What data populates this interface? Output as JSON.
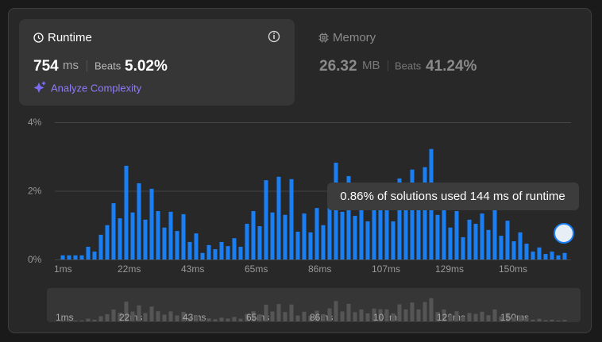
{
  "runtime": {
    "label": "Runtime",
    "value": "754",
    "unit": "ms",
    "beats_label": "Beats",
    "beats": "5.02%",
    "action": "Analyze Complexity"
  },
  "memory": {
    "label": "Memory",
    "value": "26.32",
    "unit": "MB",
    "beats_label": "Beats",
    "beats": "41.24%"
  },
  "chart_data": {
    "type": "bar",
    "color": "#1a7ef5",
    "minimap_color": "#555555",
    "categories": [
      "1ms",
      null,
      null,
      null,
      null,
      null,
      null,
      null,
      null,
      null,
      "22ms",
      null,
      null,
      null,
      null,
      null,
      null,
      null,
      null,
      null,
      "43ms",
      null,
      null,
      null,
      null,
      null,
      null,
      null,
      null,
      null,
      "65ms",
      null,
      null,
      null,
      null,
      null,
      null,
      null,
      null,
      null,
      "86ms",
      null,
      null,
      null,
      null,
      null,
      null,
      null,
      null,
      null,
      "107ms",
      null,
      null,
      null,
      null,
      null,
      null,
      null,
      null,
      null,
      "129ms",
      null,
      null,
      null,
      null,
      null,
      null,
      null,
      null,
      null,
      "150ms",
      null,
      null,
      null,
      null,
      null,
      null,
      null,
      null,
      null
    ],
    "values": [
      0.12,
      0.12,
      0.12,
      0.12,
      0.37,
      0.23,
      0.72,
      1.0,
      1.64,
      1.2,
      2.73,
      1.37,
      2.22,
      1.16,
      2.06,
      1.41,
      0.93,
      1.39,
      0.83,
      1.32,
      0.51,
      0.76,
      0.19,
      0.42,
      0.3,
      0.51,
      0.39,
      0.62,
      0.37,
      1.04,
      1.41,
      0.97,
      2.31,
      1.37,
      2.41,
      1.3,
      2.34,
      0.81,
      1.34,
      0.79,
      1.5,
      1.0,
      1.8,
      2.82,
      1.39,
      2.43,
      1.27,
      1.67,
      1.11,
      1.78,
      1.69,
      1.67,
      1.11,
      2.36,
      1.67,
      2.62,
      1.67,
      2.69,
      3.22,
      1.3,
      1.67,
      0.93,
      1.41,
      0.65,
      1.16,
      1.04,
      1.34,
      0.86,
      1.67,
      0.69,
      1.13,
      0.53,
      0.79,
      0.46,
      0.23,
      0.35,
      0.16,
      0.23,
      0.12,
      0.19
    ],
    "ylim": [
      0,
      4
    ],
    "yticks": [
      {
        "value": 0,
        "label": "0%"
      },
      {
        "value": 2,
        "label": "2%"
      },
      {
        "value": 4,
        "label": "4%"
      }
    ],
    "grid": true,
    "annotation": "0.86% of solutions used 144 ms of runtime"
  }
}
